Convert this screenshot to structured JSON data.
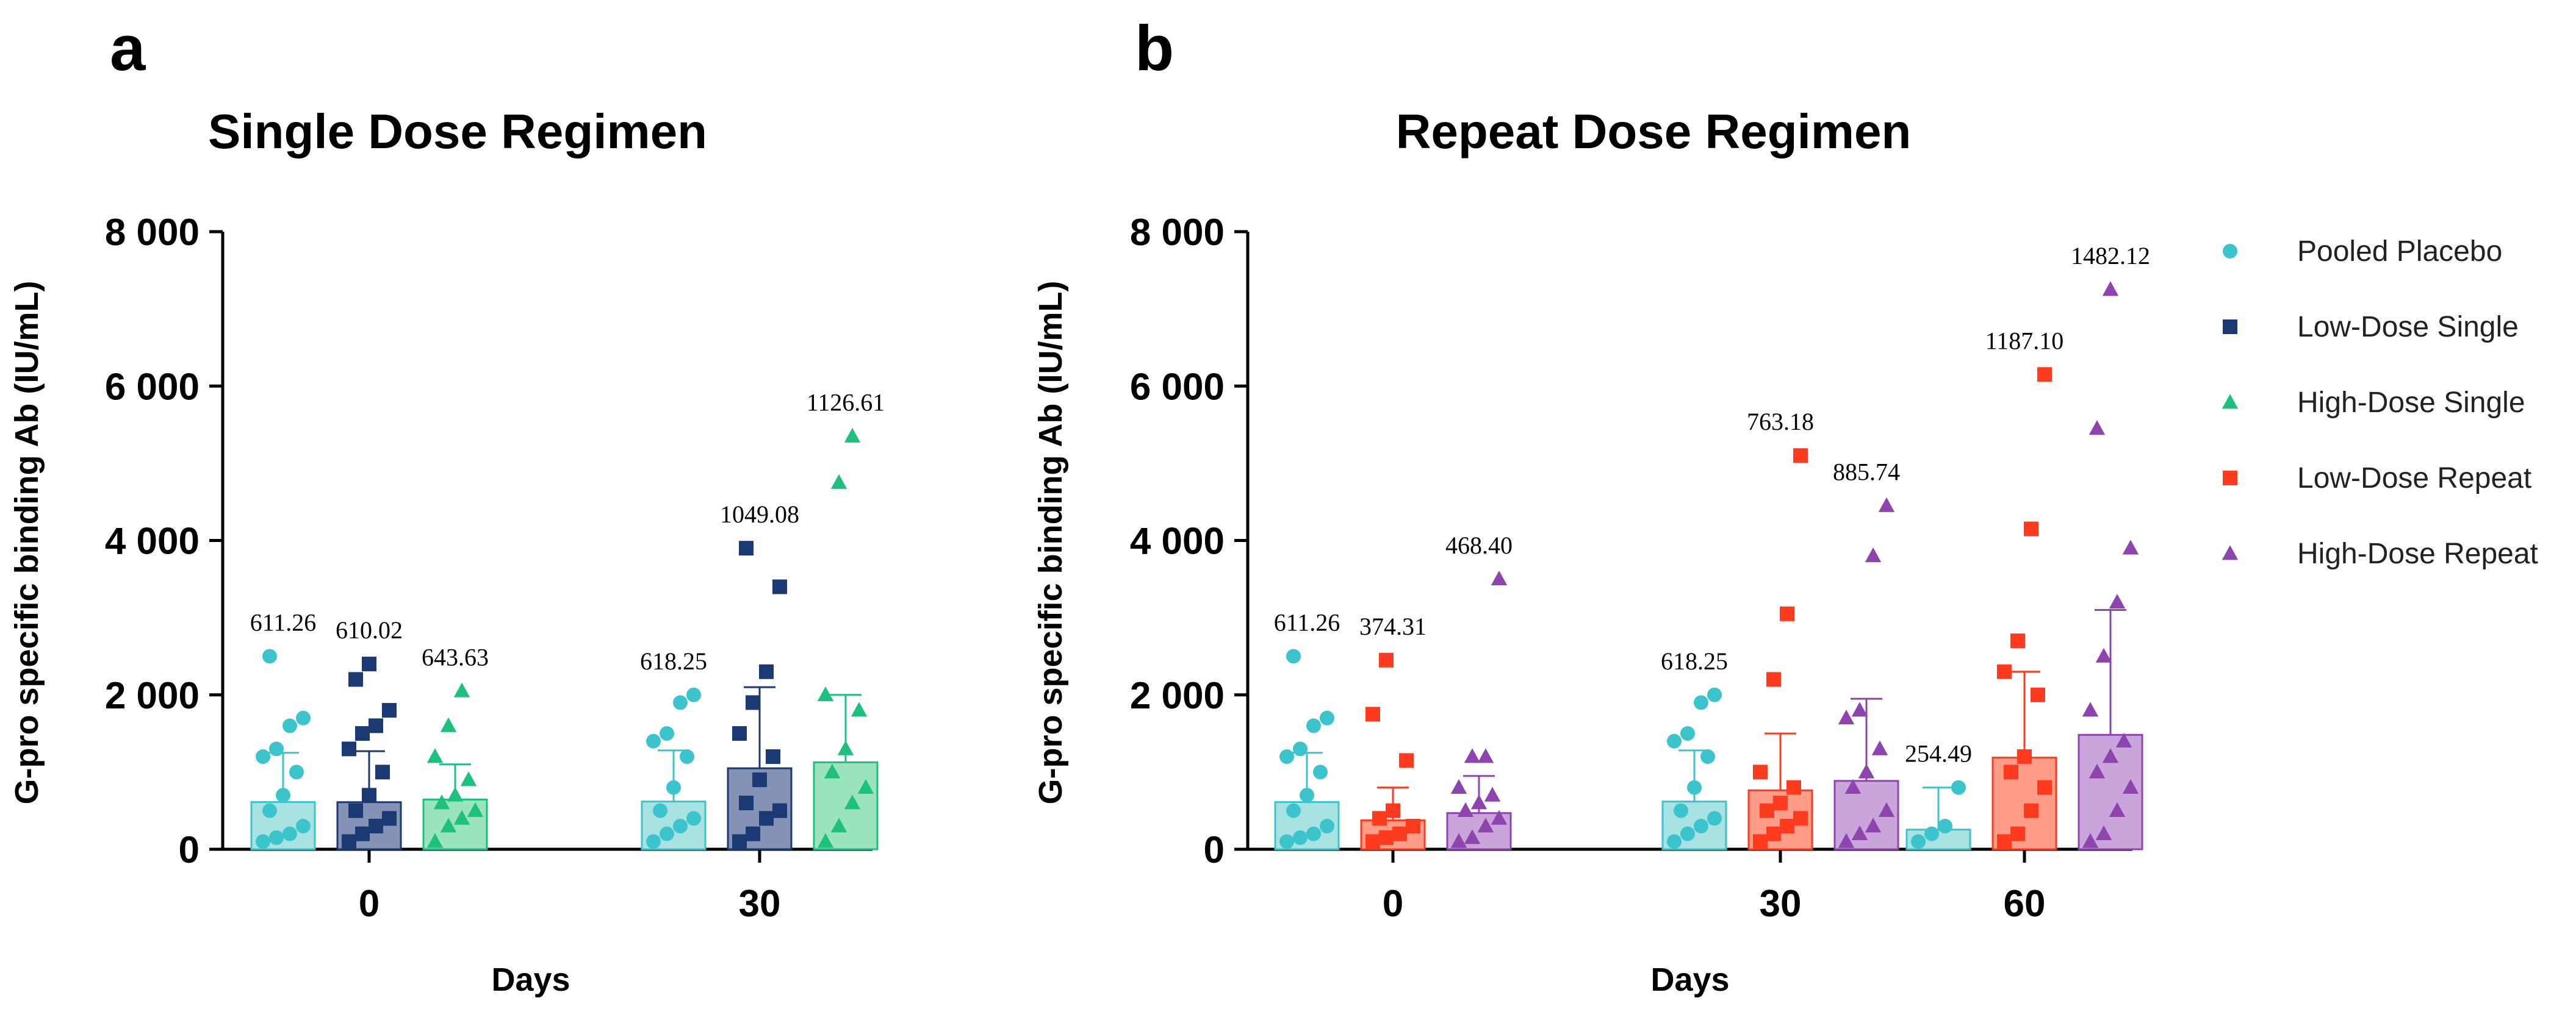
{
  "chart_data": [
    {
      "panel": "a",
      "type": "bar",
      "title": "Single Dose Regimen",
      "xlabel": "Days",
      "ylabel": "G-pro specific binding Ab (IU/mL)",
      "ylim": [
        0,
        8000
      ],
      "y_ticks": [
        0,
        2000,
        4000,
        6000,
        8000
      ],
      "y_tick_labels": [
        "0",
        "2 000",
        "4 000",
        "6 000",
        "8 000"
      ],
      "categories": [
        "0",
        "30"
      ],
      "series": [
        {
          "name": "Pooled Placebo",
          "color": "#3CC4CC",
          "fill": "#A8E2E3",
          "marker": "circle",
          "values": [
            611.26,
            618.25
          ],
          "labels": [
            "611.26",
            "618.25"
          ],
          "error_high": [
            1250,
            1280
          ],
          "points": [
            [
              100,
              150,
              200,
              300,
              500,
              700,
              1000,
              1200,
              1300,
              1600,
              1700,
              2500
            ],
            [
              100,
              200,
              300,
              400,
              500,
              800,
              1200,
              1400,
              1500,
              1900,
              2000
            ]
          ]
        },
        {
          "name": "Low-Dose Single",
          "color": "#1B3A73",
          "fill": "#8392B5",
          "marker": "square",
          "values": [
            610.02,
            1049.08
          ],
          "labels": [
            "610.02",
            "1049.08"
          ],
          "error_high": [
            1270,
            2100
          ],
          "points": [
            [
              100,
              200,
              300,
              400,
              500,
              700,
              1000,
              1300,
              1500,
              1600,
              1800,
              2200,
              2400
            ],
            [
              100,
              200,
              400,
              500,
              600,
              900,
              1200,
              1500,
              1900,
              2300,
              3400,
              3900
            ]
          ]
        },
        {
          "name": "High-Dose Single",
          "color": "#1DC07E",
          "fill": "#9BE3BE",
          "marker": "triangle",
          "values": [
            643.63,
            1126.61
          ],
          "labels": [
            "643.63",
            "1126.61"
          ],
          "error_high": [
            1100,
            2000
          ],
          "points": [
            [
              100,
              300,
              400,
              500,
              600,
              700,
              900,
              1200,
              1600,
              2050
            ],
            [
              100,
              300,
              600,
              800,
              1000,
              1300,
              1800,
              2000,
              4750,
              5350
            ]
          ]
        }
      ]
    },
    {
      "panel": "b",
      "type": "bar",
      "title": "Repeat Dose Regimen",
      "xlabel": "Days",
      "ylabel": "G-pro specific binding Ab (IU/mL)",
      "ylim": [
        0,
        8000
      ],
      "y_ticks": [
        0,
        2000,
        4000,
        6000,
        8000
      ],
      "y_tick_labels": [
        "0",
        "2 000",
        "4 000",
        "6 000",
        "8 000"
      ],
      "categories": [
        "0",
        "30",
        "60"
      ],
      "series": [
        {
          "name": "Pooled Placebo",
          "color": "#3CC4CC",
          "fill": "#A8E2E3",
          "marker": "circle",
          "values": [
            611.26,
            618.25,
            254.49
          ],
          "labels": [
            "611.26",
            "618.25",
            "254.49"
          ],
          "error_high": [
            1250,
            1280,
            800
          ],
          "points": [
            [
              100,
              150,
              200,
              300,
              500,
              700,
              1000,
              1200,
              1300,
              1600,
              1700,
              2500
            ],
            [
              100,
              200,
              300,
              400,
              500,
              800,
              1200,
              1400,
              1500,
              1900,
              2000
            ],
            [
              100,
              200,
              300,
              800
            ]
          ]
        },
        {
          "name": "Low-Dose Repeat",
          "color": "#FF3B1F",
          "fill": "#FF9D88",
          "marker": "square",
          "values": [
            374.31,
            763.18,
            1187.1
          ],
          "labels": [
            "374.31",
            "763.18",
            "1187.10"
          ],
          "error_high": [
            800,
            1500,
            2300
          ],
          "points": [
            [
              100,
              150,
              200,
              300,
              400,
              500,
              1150,
              1750,
              2450
            ],
            [
              100,
              200,
              300,
              400,
              500,
              600,
              800,
              1000,
              2200,
              3050,
              5100
            ],
            [
              100,
              200,
              500,
              800,
              1000,
              1200,
              2000,
              2300,
              2700,
              4150,
              6150
            ]
          ]
        },
        {
          "name": "High-Dose Repeat",
          "color": "#8E44AD",
          "fill": "#C9A5DB",
          "marker": "triangle",
          "values": [
            468.4,
            885.74,
            1482.12
          ],
          "labels": [
            "468.40",
            "885.74",
            "1482.12"
          ],
          "error_high": [
            950,
            1950,
            3100
          ],
          "points": [
            [
              100,
              150,
              300,
              400,
              500,
              600,
              700,
              800,
              1200,
              1200,
              3500
            ],
            [
              100,
              200,
              300,
              500,
              800,
              1000,
              1300,
              1700,
              1800,
              3800,
              4450
            ],
            [
              100,
              200,
              500,
              800,
              1000,
              1200,
              1400,
              1800,
              2500,
              3200,
              3900,
              5450,
              7250
            ]
          ]
        }
      ]
    }
  ],
  "legend": [
    {
      "name": "Pooled Placebo",
      "color": "#3CC4CC",
      "marker": "circle"
    },
    {
      "name": "Low-Dose Single",
      "color": "#1B3A73",
      "marker": "square"
    },
    {
      "name": "High-Dose Single",
      "color": "#1DC07E",
      "marker": "triangle"
    },
    {
      "name": "Low-Dose Repeat",
      "color": "#FF3B1F",
      "marker": "square"
    },
    {
      "name": "High-Dose Repeat",
      "color": "#8E44AD",
      "marker": "triangle"
    }
  ]
}
